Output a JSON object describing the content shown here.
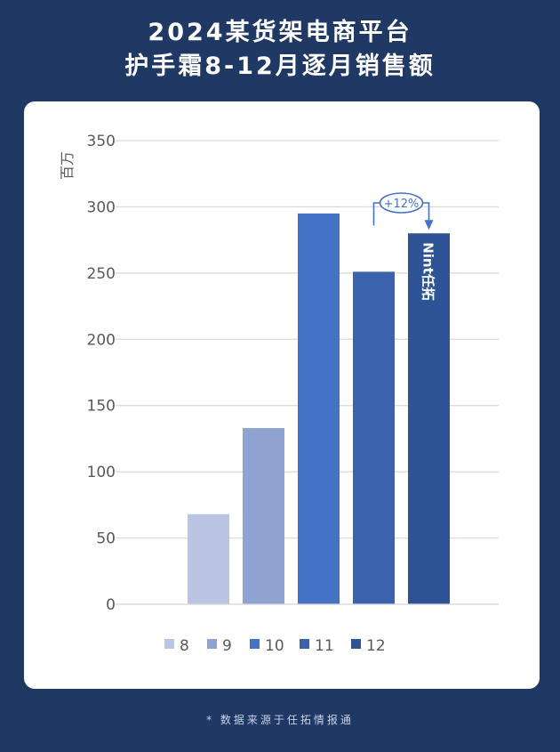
{
  "header": {
    "title_line1": "2024某货架电商平台",
    "title_line2": "护手霜8-12月逐月销售额"
  },
  "footer": {
    "source": "* 数据来源于任拓情报通"
  },
  "colors": {
    "background": "#1f3864",
    "grid": "#d9d9d9",
    "axis_text": "#595959",
    "watermark": "#ffffff",
    "annotation": "#4472c4"
  },
  "chart_data": {
    "type": "bar",
    "ylabel": "百万",
    "ylim": [
      0,
      350
    ],
    "yticks": [
      0,
      50,
      100,
      150,
      200,
      250,
      300,
      350
    ],
    "grid": true,
    "legend_position": "bottom",
    "categories": [
      "8",
      "9",
      "10",
      "11",
      "12"
    ],
    "values": [
      68,
      133,
      295,
      251,
      280
    ],
    "colors": [
      "#bcc4e3",
      "#8fa3d3",
      "#4472c4",
      "#3a62ad",
      "#2f5496"
    ],
    "annotation": {
      "text": "+12%",
      "from": "11",
      "to": "12"
    },
    "watermark": "Nint任拓"
  }
}
